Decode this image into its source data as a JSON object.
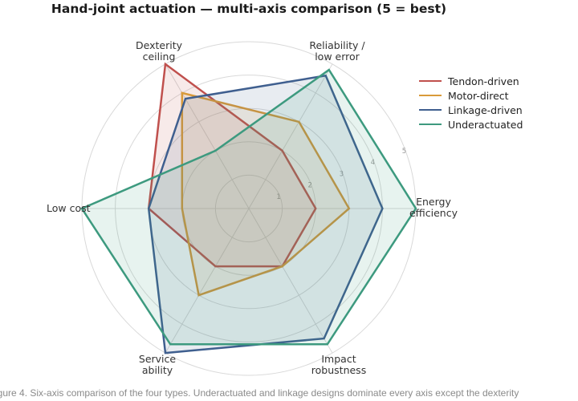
{
  "chart_data": {
    "type": "radar",
    "title": "Hand-joint actuation — multi-axis comparison (5 = best)",
    "axes": [
      {
        "lines": [
          "Reliability /",
          "low error"
        ]
      },
      {
        "lines": [
          "Energy",
          "efficiency"
        ]
      },
      {
        "lines": [
          "Impact",
          "robustness"
        ]
      },
      {
        "lines": [
          "Service",
          "ability"
        ]
      },
      {
        "lines": [
          "Low cost"
        ]
      },
      {
        "lines": [
          "Dexterity",
          "ceiling"
        ]
      }
    ],
    "rlim": [
      0,
      5
    ],
    "ticks": [
      "1",
      "2",
      "3",
      "4",
      "5"
    ],
    "grid": true,
    "legend_position": "top-right",
    "series": [
      {
        "name": "Tendon-driven",
        "color": "#c0504d",
        "values": [
          2.0,
          2.0,
          2.0,
          2.0,
          3.0,
          5.0
        ]
      },
      {
        "name": "Motor-direct",
        "color": "#d99a3a",
        "values": [
          3.0,
          3.0,
          2.0,
          3.0,
          2.0,
          4.0
        ]
      },
      {
        "name": "Linkage-driven",
        "color": "#3f5f8f",
        "values": [
          4.6,
          4.0,
          4.5,
          5.0,
          3.0,
          3.8
        ]
      },
      {
        "name": "Underactuated",
        "color": "#3d9a7f",
        "values": [
          4.8,
          5.0,
          4.7,
          4.7,
          5.0,
          2.0
        ]
      }
    ]
  },
  "caption": "igure 4. Six-axis comparison of the four types. Underactuated and linkage designs dominate every axis except the dexterity"
}
